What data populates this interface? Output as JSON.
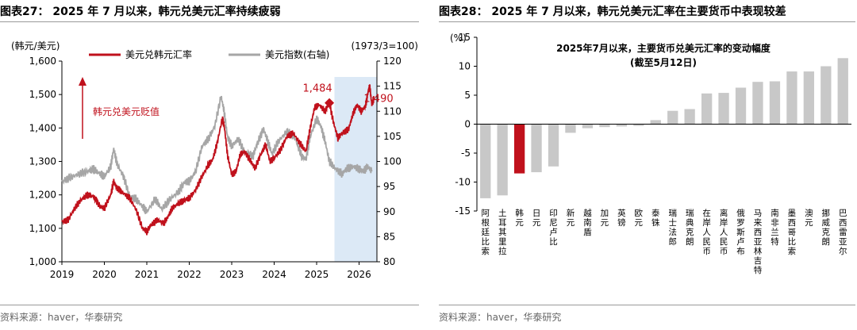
{
  "left": {
    "title": "图表27： 2025 年 7 月以来，韩元兑美元汇率持续疲弱",
    "source": "资料来源：haver，华泰研究",
    "chart_data": {
      "type": "line",
      "left_axis_label": "(韩元/美元)",
      "right_axis_label": "(1973/3=100)",
      "left_ylim": [
        1000,
        1600
      ],
      "left_yticks": [
        "1,000",
        "1,100",
        "1,200",
        "1,300",
        "1,400",
        "1,500",
        "1,600"
      ],
      "right_ylim": [
        80,
        120
      ],
      "right_yticks": [
        "80",
        "85",
        "90",
        "95",
        "100",
        "105",
        "110",
        "115",
        "120"
      ],
      "x_ticks": [
        "2019",
        "2020",
        "2021",
        "2022",
        "2023",
        "2024",
        "2025",
        "2026"
      ],
      "legend": [
        "美元兑韩元汇率",
        "美元指数(右轴)"
      ],
      "arrow_label": "韩元兑美元贬值",
      "annotations": [
        "1,484",
        "1,490"
      ],
      "highlight_range": [
        "2025-06",
        "2026-05"
      ],
      "series": [
        {
          "name": "美元兑韩元汇率",
          "axis": "left",
          "color": "#c0111c",
          "points": [
            [
              2019.0,
              1120
            ],
            [
              2019.15,
              1125
            ],
            [
              2019.3,
              1160
            ],
            [
              2019.45,
              1185
            ],
            [
              2019.6,
              1200
            ],
            [
              2019.75,
              1195
            ],
            [
              2019.9,
              1165
            ],
            [
              2020.0,
              1160
            ],
            [
              2020.15,
              1200
            ],
            [
              2020.22,
              1240
            ],
            [
              2020.3,
              1220
            ],
            [
              2020.45,
              1205
            ],
            [
              2020.6,
              1190
            ],
            [
              2020.75,
              1155
            ],
            [
              2020.9,
              1100
            ],
            [
              2021.0,
              1090
            ],
            [
              2021.1,
              1110
            ],
            [
              2021.25,
              1125
            ],
            [
              2021.4,
              1115
            ],
            [
              2021.5,
              1135
            ],
            [
              2021.6,
              1160
            ],
            [
              2021.75,
              1175
            ],
            [
              2021.9,
              1185
            ],
            [
              2022.0,
              1190
            ],
            [
              2022.15,
              1215
            ],
            [
              2022.3,
              1255
            ],
            [
              2022.45,
              1290
            ],
            [
              2022.55,
              1305
            ],
            [
              2022.65,
              1350
            ],
            [
              2022.78,
              1430
            ],
            [
              2022.83,
              1400
            ],
            [
              2022.9,
              1320
            ],
            [
              2023.0,
              1260
            ],
            [
              2023.1,
              1270
            ],
            [
              2023.2,
              1320
            ],
            [
              2023.3,
              1330
            ],
            [
              2023.45,
              1300
            ],
            [
              2023.55,
              1280
            ],
            [
              2023.7,
              1325
            ],
            [
              2023.8,
              1350
            ],
            [
              2023.9,
              1300
            ],
            [
              2024.0,
              1310
            ],
            [
              2024.15,
              1335
            ],
            [
              2024.3,
              1375
            ],
            [
              2024.45,
              1385
            ],
            [
              2024.6,
              1355
            ],
            [
              2024.75,
              1330
            ],
            [
              2024.85,
              1400
            ],
            [
              2024.95,
              1460
            ],
            [
              2025.05,
              1470
            ],
            [
              2025.2,
              1450
            ],
            [
              2025.3,
              1475
            ],
            [
              2025.4,
              1415
            ],
            [
              2025.5,
              1370
            ],
            [
              2025.6,
              1385
            ],
            [
              2025.75,
              1395
            ],
            [
              2025.85,
              1440
            ],
            [
              2025.95,
              1470
            ],
            [
              2026.05,
              1450
            ],
            [
              2026.15,
              1465
            ],
            [
              2026.2,
              1500
            ],
            [
              2026.25,
              1525
            ],
            [
              2026.3,
              1470
            ],
            [
              2026.35,
              1490
            ]
          ]
        },
        {
          "name": "美元指数(右轴)",
          "axis": "right",
          "color": "#a6a6a6",
          "points": [
            [
              2019.0,
              96
            ],
            [
              2019.2,
              96.8
            ],
            [
              2019.4,
              97.5
            ],
            [
              2019.6,
              98
            ],
            [
              2019.75,
              98.5
            ],
            [
              2019.9,
              97.5
            ],
            [
              2020.0,
              97
            ],
            [
              2020.15,
              99
            ],
            [
              2020.22,
              102.5
            ],
            [
              2020.3,
              99.5
            ],
            [
              2020.45,
              97
            ],
            [
              2020.6,
              93
            ],
            [
              2020.75,
              92.5
            ],
            [
              2020.9,
              91
            ],
            [
              2021.0,
              90
            ],
            [
              2021.2,
              92.5
            ],
            [
              2021.35,
              90.5
            ],
            [
              2021.55,
              92.5
            ],
            [
              2021.75,
              94
            ],
            [
              2021.9,
              96
            ],
            [
              2022.0,
              96
            ],
            [
              2022.15,
              98
            ],
            [
              2022.3,
              103
            ],
            [
              2022.45,
              104.5
            ],
            [
              2022.6,
              107
            ],
            [
              2022.75,
              113
            ],
            [
              2022.82,
              110
            ],
            [
              2022.9,
              105
            ],
            [
              2023.0,
              103
            ],
            [
              2023.15,
              104.5
            ],
            [
              2023.3,
              102
            ],
            [
              2023.5,
              101
            ],
            [
              2023.6,
              103.5
            ],
            [
              2023.75,
              106.5
            ],
            [
              2023.85,
              104
            ],
            [
              2023.95,
              101.5
            ],
            [
              2024.1,
              104
            ],
            [
              2024.3,
              106
            ],
            [
              2024.5,
              104.5
            ],
            [
              2024.65,
              101
            ],
            [
              2024.75,
              100.5
            ],
            [
              2024.85,
              105
            ],
            [
              2025.0,
              108.5
            ],
            [
              2025.1,
              107
            ],
            [
              2025.2,
              104
            ],
            [
              2025.3,
              100
            ],
            [
              2025.45,
              98.5
            ],
            [
              2025.6,
              97.5
            ],
            [
              2025.7,
              98.5
            ],
            [
              2025.85,
              99
            ],
            [
              2026.0,
              98.5
            ],
            [
              2026.1,
              98
            ],
            [
              2026.2,
              99
            ],
            [
              2026.3,
              98
            ]
          ]
        }
      ]
    }
  },
  "right": {
    "title": "图表28： 2025 年 7 月以来，韩元兑美元汇率在主要货币中表现较差",
    "source": "资料来源：haver，华泰研究",
    "chart_data": {
      "type": "bar",
      "title": "2025年7月以来，主要货币兑美元汇率的变动幅度",
      "subtitle": "(截至5月12日)",
      "ylabel": "(%)",
      "ylim": [
        -15,
        15
      ],
      "yticks": [
        "-15",
        "-10",
        "-5",
        "0",
        "5",
        "10",
        "15"
      ],
      "highlight_category": "韩元",
      "highlight_color": "#c0111c",
      "bar_color": "#c8c8c8",
      "categories": [
        "阿根廷比索",
        "土耳其里拉",
        "韩元",
        "日元",
        "印尼卢比",
        "新元",
        "越南盾",
        "加元",
        "英镑",
        "欧元",
        "泰铢",
        "瑞士法郎",
        "瑞典克朗",
        "在岸人民币",
        "离岸人民币",
        "俄罗斯卢布",
        "马来西亚林吉特",
        "南非兰特",
        "墨西哥比索",
        "澳元",
        "挪威克朗",
        "巴西雷亚尔"
      ],
      "values": [
        -12.8,
        -12.3,
        -8.5,
        -8.3,
        -7.3,
        -1.5,
        -0.7,
        -0.5,
        -0.4,
        -0.3,
        0.7,
        2.3,
        2.6,
        5.3,
        5.4,
        6.3,
        7.3,
        7.4,
        9.1,
        9.1,
        10.0,
        11.4
      ]
    }
  }
}
